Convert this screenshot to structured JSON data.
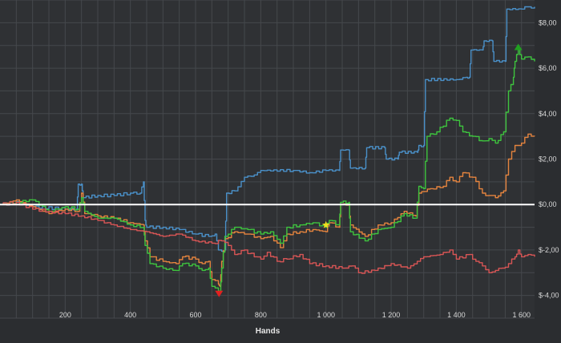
{
  "chart_data": {
    "type": "line",
    "xlabel": "Hands",
    "ylabel": "",
    "xlim": [
      0,
      1640
    ],
    "ylim": [
      -5,
      9
    ],
    "x_ticks": [
      200,
      400,
      600,
      800,
      1000,
      1200,
      1400,
      1600
    ],
    "x_tick_labels": [
      "200",
      "400",
      "600",
      "800",
      "1 000",
      "1 200",
      "1 400",
      "1 600"
    ],
    "y_ticks": [
      -4,
      -2,
      0,
      2,
      4,
      6,
      8
    ],
    "y_tick_labels": [
      "$-4,00",
      "$-2,00",
      "$0,00",
      "$2,00",
      "$4,00",
      "$6,00",
      "$8,00"
    ],
    "grid": true,
    "zero_line": true,
    "series": [
      {
        "color": "#4a90c8",
        "points": [
          [
            0,
            0
          ],
          [
            60,
            0.1
          ],
          [
            100,
            -0.1
          ],
          [
            200,
            -0.2
          ],
          [
            235,
            -0.2
          ],
          [
            240,
            0.9
          ],
          [
            250,
            0.9
          ],
          [
            255,
            0.3
          ],
          [
            300,
            0.4
          ],
          [
            350,
            0.4
          ],
          [
            400,
            0.5
          ],
          [
            430,
            0.5
          ],
          [
            440,
            1.0
          ],
          [
            445,
            -0.7
          ],
          [
            450,
            -1.0
          ],
          [
            500,
            -1.0
          ],
          [
            550,
            -1.1
          ],
          [
            600,
            -1.3
          ],
          [
            640,
            -1.4
          ],
          [
            660,
            -1.3
          ],
          [
            670,
            -2.0
          ],
          [
            690,
            -2.0
          ],
          [
            695,
            0.5
          ],
          [
            720,
            0.6
          ],
          [
            750,
            1.2
          ],
          [
            780,
            1.3
          ],
          [
            800,
            1.5
          ],
          [
            900,
            1.5
          ],
          [
            950,
            1.4
          ],
          [
            1000,
            1.5
          ],
          [
            1040,
            1.5
          ],
          [
            1045,
            2.4
          ],
          [
            1070,
            2.4
          ],
          [
            1075,
            1.6
          ],
          [
            1120,
            1.6
          ],
          [
            1125,
            2.5
          ],
          [
            1180,
            2.5
          ],
          [
            1185,
            2.0
          ],
          [
            1220,
            2.0
          ],
          [
            1225,
            2.3
          ],
          [
            1280,
            2.3
          ],
          [
            1285,
            2.6
          ],
          [
            1300,
            2.6
          ],
          [
            1305,
            5.5
          ],
          [
            1400,
            5.5
          ],
          [
            1430,
            5.6
          ],
          [
            1440,
            5.6
          ],
          [
            1445,
            6.8
          ],
          [
            1480,
            6.8
          ],
          [
            1485,
            7.2
          ],
          [
            1510,
            7.2
          ],
          [
            1515,
            6.3
          ],
          [
            1550,
            6.3
          ],
          [
            1555,
            8.6
          ],
          [
            1600,
            8.6
          ],
          [
            1620,
            8.7
          ],
          [
            1640,
            8.7
          ]
        ]
      },
      {
        "color": "#e5843e",
        "points": [
          [
            0,
            0
          ],
          [
            50,
            0.2
          ],
          [
            100,
            -0.1
          ],
          [
            150,
            -0.4
          ],
          [
            200,
            -0.2
          ],
          [
            240,
            -0.3
          ],
          [
            250,
            0.5
          ],
          [
            260,
            -0.4
          ],
          [
            300,
            -0.5
          ],
          [
            350,
            -0.6
          ],
          [
            400,
            -0.8
          ],
          [
            440,
            -0.9
          ],
          [
            445,
            -1.6
          ],
          [
            460,
            -2.3
          ],
          [
            500,
            -2.5
          ],
          [
            540,
            -2.6
          ],
          [
            560,
            -2.3
          ],
          [
            600,
            -2.4
          ],
          [
            620,
            -2.6
          ],
          [
            640,
            -2.5
          ],
          [
            650,
            -3.3
          ],
          [
            670,
            -3.5
          ],
          [
            675,
            -3.6
          ],
          [
            680,
            -2.5
          ],
          [
            690,
            -1.5
          ],
          [
            720,
            -1.2
          ],
          [
            760,
            -1.3
          ],
          [
            800,
            -1.5
          ],
          [
            830,
            -1.4
          ],
          [
            860,
            -1.9
          ],
          [
            880,
            -1.3
          ],
          [
            920,
            -1.2
          ],
          [
            960,
            -1.1
          ],
          [
            1000,
            -1.2
          ],
          [
            1010,
            -0.8
          ],
          [
            1040,
            -1.0
          ],
          [
            1045,
            0.0
          ],
          [
            1070,
            0.0
          ],
          [
            1075,
            -0.9
          ],
          [
            1120,
            -1.4
          ],
          [
            1160,
            -0.9
          ],
          [
            1200,
            -0.8
          ],
          [
            1240,
            -0.3
          ],
          [
            1275,
            -0.5
          ],
          [
            1285,
            0.5
          ],
          [
            1320,
            0.7
          ],
          [
            1360,
            0.8
          ],
          [
            1380,
            1.2
          ],
          [
            1400,
            1.0
          ],
          [
            1420,
            1.4
          ],
          [
            1450,
            1.2
          ],
          [
            1480,
            0.5
          ],
          [
            1500,
            0.4
          ],
          [
            1520,
            0.3
          ],
          [
            1545,
            0.6
          ],
          [
            1560,
            2.0
          ],
          [
            1580,
            2.6
          ],
          [
            1600,
            2.7
          ],
          [
            1620,
            3.1
          ],
          [
            1640,
            3.0
          ]
        ]
      },
      {
        "color": "#3ec43e",
        "points": [
          [
            0,
            0
          ],
          [
            50,
            0.1
          ],
          [
            100,
            0.2
          ],
          [
            150,
            -0.3
          ],
          [
            200,
            -0.1
          ],
          [
            240,
            -0.2
          ],
          [
            250,
            0.3
          ],
          [
            260,
            -0.3
          ],
          [
            300,
            -0.6
          ],
          [
            350,
            -0.6
          ],
          [
            400,
            -0.9
          ],
          [
            440,
            -1.0
          ],
          [
            445,
            -1.8
          ],
          [
            460,
            -2.6
          ],
          [
            500,
            -2.8
          ],
          [
            540,
            -2.9
          ],
          [
            560,
            -2.6
          ],
          [
            600,
            -2.7
          ],
          [
            620,
            -2.9
          ],
          [
            640,
            -2.8
          ],
          [
            650,
            -3.6
          ],
          [
            670,
            -3.8
          ],
          [
            675,
            -3.9
          ],
          [
            680,
            -2.8
          ],
          [
            690,
            -1.4
          ],
          [
            720,
            -1.0
          ],
          [
            760,
            -1.1
          ],
          [
            800,
            -1.3
          ],
          [
            830,
            -1.2
          ],
          [
            860,
            -1.7
          ],
          [
            880,
            -1.0
          ],
          [
            920,
            -0.9
          ],
          [
            960,
            -0.8
          ],
          [
            1000,
            -1.0
          ],
          [
            1010,
            -0.7
          ],
          [
            1040,
            -0.9
          ],
          [
            1045,
            0.1
          ],
          [
            1070,
            0.1
          ],
          [
            1075,
            -1.2
          ],
          [
            1120,
            -1.6
          ],
          [
            1160,
            -1.1
          ],
          [
            1200,
            -1.0
          ],
          [
            1240,
            -0.4
          ],
          [
            1275,
            -0.6
          ],
          [
            1285,
            0.8
          ],
          [
            1300,
            0.7
          ],
          [
            1310,
            3.0
          ],
          [
            1340,
            3.2
          ],
          [
            1380,
            3.8
          ],
          [
            1400,
            3.7
          ],
          [
            1420,
            3.2
          ],
          [
            1450,
            3.0
          ],
          [
            1480,
            2.8
          ],
          [
            1500,
            2.9
          ],
          [
            1520,
            2.7
          ],
          [
            1545,
            3.2
          ],
          [
            1560,
            5.0
          ],
          [
            1575,
            5.6
          ],
          [
            1580,
            6.3
          ],
          [
            1590,
            6.9
          ],
          [
            1600,
            6.4
          ],
          [
            1620,
            6.5
          ],
          [
            1640,
            6.3
          ]
        ]
      },
      {
        "color": "#d85555",
        "points": [
          [
            0,
            0
          ],
          [
            50,
            0.1
          ],
          [
            100,
            -0.2
          ],
          [
            150,
            -0.3
          ],
          [
            200,
            -0.4
          ],
          [
            250,
            -0.5
          ],
          [
            300,
            -0.7
          ],
          [
            350,
            -0.9
          ],
          [
            400,
            -1.1
          ],
          [
            450,
            -1.2
          ],
          [
            500,
            -1.4
          ],
          [
            550,
            -1.3
          ],
          [
            600,
            -1.6
          ],
          [
            650,
            -1.7
          ],
          [
            680,
            -1.6
          ],
          [
            700,
            -1.8
          ],
          [
            720,
            -2.2
          ],
          [
            750,
            -2.0
          ],
          [
            780,
            -2.3
          ],
          [
            800,
            -2.4
          ],
          [
            820,
            -2.1
          ],
          [
            850,
            -2.5
          ],
          [
            880,
            -2.4
          ],
          [
            920,
            -2.2
          ],
          [
            950,
            -2.6
          ],
          [
            1000,
            -2.7
          ],
          [
            1050,
            -2.8
          ],
          [
            1080,
            -2.7
          ],
          [
            1100,
            -3.0
          ],
          [
            1150,
            -2.9
          ],
          [
            1200,
            -2.6
          ],
          [
            1250,
            -2.8
          ],
          [
            1280,
            -2.5
          ],
          [
            1300,
            -2.3
          ],
          [
            1350,
            -2.2
          ],
          [
            1380,
            -2.0
          ],
          [
            1400,
            -2.4
          ],
          [
            1440,
            -2.2
          ],
          [
            1460,
            -2.5
          ],
          [
            1480,
            -2.7
          ],
          [
            1500,
            -3.0
          ],
          [
            1520,
            -2.9
          ],
          [
            1540,
            -2.8
          ],
          [
            1560,
            -2.6
          ],
          [
            1580,
            -2.3
          ],
          [
            1590,
            -2.0
          ],
          [
            1600,
            -2.3
          ],
          [
            1620,
            -2.2
          ],
          [
            1640,
            -2.3
          ]
        ]
      }
    ],
    "markers": [
      {
        "shape": "star",
        "x": 1000,
        "y": -0.9,
        "color": "#f0e020"
      },
      {
        "shape": "triangle-down",
        "x": 672,
        "y": -3.9,
        "color": "#e02020"
      },
      {
        "shape": "triangle-up",
        "x": 1590,
        "y": 6.9,
        "color": "#20a020"
      }
    ]
  }
}
